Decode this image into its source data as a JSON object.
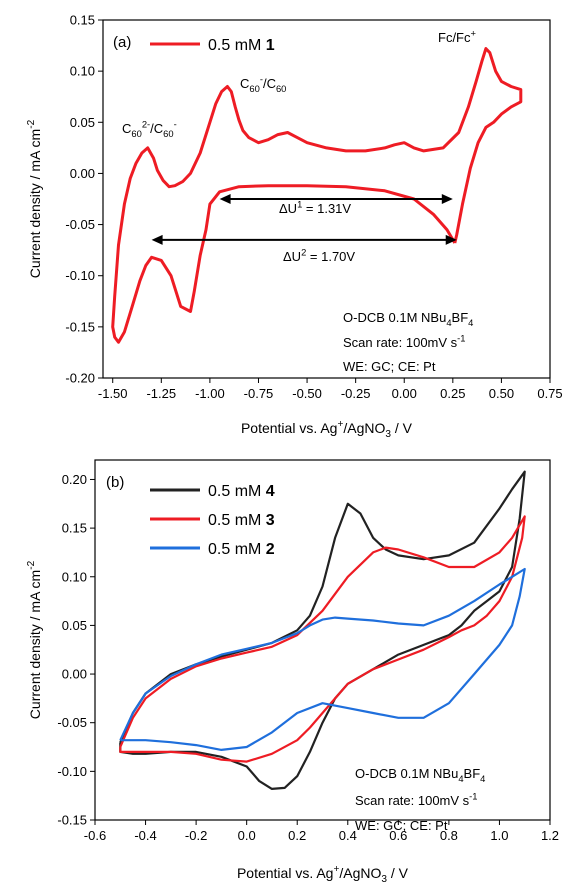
{
  "chart_data": [
    {
      "panel": "(a)",
      "type": "line",
      "xlabel": [
        "Potential vs. Ag",
        "+",
        "/AgNO",
        "3",
        " / V"
      ],
      "ylabel": [
        "Current density / mA cm",
        "-2"
      ],
      "xlim": [
        -1.55,
        0.75
      ],
      "ylim": [
        -0.2,
        0.15
      ],
      "xticks": [
        "-1.50",
        "-1.25",
        "-1.00",
        "-0.75",
        "-0.50",
        "-0.25",
        "0.00",
        "0.25",
        "0.50",
        "0.75"
      ],
      "yticks": [
        "-0.20",
        "-0.15",
        "-0.10",
        "-0.05",
        "0.00",
        "0.05",
        "0.10",
        "0.15"
      ],
      "series": [
        {
          "name": [
            "0.5 mM ",
            "1"
          ],
          "color": "#ee1c24",
          "x": [
            0.26,
            0.22,
            0.15,
            0.05,
            -0.1,
            -0.3,
            -0.5,
            -0.7,
            -0.85,
            -0.95,
            -1.0,
            -1.02,
            -1.05,
            -1.08,
            -1.1,
            -1.15,
            -1.2,
            -1.25,
            -1.3,
            -1.33,
            -1.36,
            -1.4,
            -1.44,
            -1.47,
            -1.49,
            -1.5,
            -1.49,
            -1.47,
            -1.44,
            -1.41,
            -1.38,
            -1.35,
            -1.32,
            -1.29,
            -1.27,
            -1.24,
            -1.21,
            -1.18,
            -1.14,
            -1.1,
            -1.05,
            -1.0,
            -0.97,
            -0.94,
            -0.91,
            -0.89,
            -0.87,
            -0.85,
            -0.83,
            -0.8,
            -0.75,
            -0.7,
            -0.65,
            -0.6,
            -0.55,
            -0.5,
            -0.4,
            -0.3,
            -0.2,
            -0.1,
            -0.05,
            0.0,
            0.05,
            0.1,
            0.2,
            0.28,
            0.33,
            0.37,
            0.4,
            0.42,
            0.44,
            0.47,
            0.5,
            0.55,
            0.6,
            0.6,
            0.55,
            0.5,
            0.46,
            0.42,
            0.38,
            0.34,
            0.3,
            0.27
          ],
          "y": [
            -0.068,
            -0.055,
            -0.04,
            -0.025,
            -0.017,
            -0.013,
            -0.012,
            -0.012,
            -0.013,
            -0.018,
            -0.03,
            -0.055,
            -0.08,
            -0.115,
            -0.135,
            -0.13,
            -0.1,
            -0.085,
            -0.082,
            -0.09,
            -0.105,
            -0.13,
            -0.155,
            -0.165,
            -0.16,
            -0.15,
            -0.12,
            -0.07,
            -0.03,
            -0.005,
            0.01,
            0.02,
            0.025,
            0.015,
            0.003,
            -0.007,
            -0.013,
            -0.012,
            -0.008,
            0.0,
            0.02,
            0.05,
            0.068,
            0.08,
            0.085,
            0.08,
            0.065,
            0.052,
            0.042,
            0.035,
            0.03,
            0.033,
            0.038,
            0.04,
            0.035,
            0.03,
            0.025,
            0.022,
            0.022,
            0.025,
            0.028,
            0.03,
            0.025,
            0.022,
            0.025,
            0.04,
            0.065,
            0.09,
            0.11,
            0.122,
            0.118,
            0.1,
            0.09,
            0.085,
            0.082,
            0.07,
            0.065,
            0.058,
            0.05,
            0.045,
            0.03,
            0.005,
            -0.03,
            -0.06
          ]
        }
      ],
      "annotations": [
        {
          "parts": [
            "C",
            "60",
            "2-",
            "/C",
            "60",
            "-"
          ],
          "kinds": [
            "t",
            "sub",
            "sup",
            "t",
            "sub",
            "sup"
          ]
        },
        {
          "parts": [
            "C",
            "60",
            "-",
            "/C",
            "60"
          ],
          "kinds": [
            "t",
            "sub",
            "sup",
            "t",
            "sub"
          ]
        },
        {
          "parts": [
            "Fc/Fc",
            "+"
          ],
          "kinds": [
            "t",
            "sup"
          ]
        },
        {
          "parts": [
            "ΔU",
            "1",
            " = 1.31V"
          ],
          "kinds": [
            "t",
            "sup",
            "t"
          ]
        },
        {
          "parts": [
            "ΔU",
            "2",
            " = 1.70V"
          ],
          "kinds": [
            "t",
            "sup",
            "t"
          ]
        }
      ],
      "arrows": [
        {
          "x_from": -0.95,
          "x_to": 0.25,
          "y": -0.025
        },
        {
          "x_from": -1.3,
          "x_to": 0.27,
          "y": -0.065
        }
      ],
      "info_lines": [
        {
          "parts": [
            "O-DCB 0.1M NBu",
            "4",
            "BF",
            "4"
          ],
          "kinds": [
            "t",
            "sub",
            "t",
            "sub"
          ]
        },
        {
          "parts": [
            "Scan rate: 100mV s",
            "-1"
          ],
          "kinds": [
            "t",
            "sup"
          ]
        },
        {
          "parts": [
            "WE: GC; CE: Pt"
          ],
          "kinds": [
            "t"
          ]
        }
      ]
    },
    {
      "panel": "(b)",
      "type": "line",
      "xlabel": [
        "Potential vs. Ag",
        "+",
        "/AgNO",
        "3",
        " / V"
      ],
      "ylabel": [
        "Current density / mA cm",
        "-2"
      ],
      "xlim": [
        -0.6,
        1.2
      ],
      "ylim": [
        -0.15,
        0.22
      ],
      "xticks": [
        "-0.6",
        "-0.4",
        "-0.2",
        "0.0",
        "0.2",
        "0.4",
        "0.6",
        "0.8",
        "1.0",
        "1.2"
      ],
      "yticks": [
        "-0.15",
        "-0.10",
        "-0.05",
        "0.00",
        "0.05",
        "0.10",
        "0.15",
        "0.20"
      ],
      "series": [
        {
          "name": [
            "0.5 mM ",
            "4"
          ],
          "color": "#222222",
          "x": [
            -0.5,
            -0.45,
            -0.4,
            -0.3,
            -0.2,
            -0.1,
            0.0,
            0.1,
            0.2,
            0.25,
            0.3,
            0.35,
            0.4,
            0.45,
            0.5,
            0.55,
            0.6,
            0.7,
            0.8,
            0.9,
            1.0,
            1.05,
            1.1,
            1.08,
            1.05,
            1.0,
            0.95,
            0.9,
            0.85,
            0.8,
            0.7,
            0.6,
            0.5,
            0.4,
            0.35,
            0.3,
            0.25,
            0.2,
            0.15,
            0.1,
            0.05,
            0.0,
            -0.1,
            -0.2,
            -0.3,
            -0.4,
            -0.45,
            -0.5
          ],
          "y": [
            -0.07,
            -0.04,
            -0.02,
            0.0,
            0.01,
            0.018,
            0.025,
            0.032,
            0.045,
            0.06,
            0.09,
            0.14,
            0.175,
            0.165,
            0.14,
            0.128,
            0.122,
            0.118,
            0.122,
            0.135,
            0.17,
            0.19,
            0.208,
            0.16,
            0.11,
            0.085,
            0.075,
            0.065,
            0.05,
            0.04,
            0.03,
            0.02,
            0.005,
            -0.01,
            -0.025,
            -0.05,
            -0.08,
            -0.105,
            -0.117,
            -0.118,
            -0.11,
            -0.095,
            -0.085,
            -0.08,
            -0.08,
            -0.082,
            -0.082,
            -0.08
          ]
        },
        {
          "name": [
            "0.5 mM ",
            "3"
          ],
          "color": "#ee1c24",
          "x": [
            -0.5,
            -0.45,
            -0.4,
            -0.3,
            -0.2,
            -0.1,
            0.0,
            0.1,
            0.2,
            0.3,
            0.4,
            0.5,
            0.55,
            0.6,
            0.7,
            0.8,
            0.9,
            1.0,
            1.05,
            1.1,
            1.09,
            1.05,
            1.0,
            0.95,
            0.9,
            0.85,
            0.8,
            0.7,
            0.6,
            0.5,
            0.4,
            0.35,
            0.3,
            0.25,
            0.2,
            0.1,
            0.0,
            -0.1,
            -0.2,
            -0.3,
            -0.4,
            -0.5
          ],
          "y": [
            -0.075,
            -0.045,
            -0.025,
            -0.005,
            0.008,
            0.016,
            0.022,
            0.028,
            0.04,
            0.065,
            0.1,
            0.125,
            0.13,
            0.128,
            0.12,
            0.11,
            0.11,
            0.125,
            0.14,
            0.162,
            0.14,
            0.1,
            0.075,
            0.06,
            0.05,
            0.045,
            0.038,
            0.025,
            0.015,
            0.005,
            -0.01,
            -0.025,
            -0.04,
            -0.055,
            -0.068,
            -0.082,
            -0.09,
            -0.088,
            -0.082,
            -0.08,
            -0.08,
            -0.08
          ]
        },
        {
          "name": [
            "0.5 mM ",
            "2"
          ],
          "color": "#1f6fdc",
          "x": [
            -0.5,
            -0.45,
            -0.4,
            -0.3,
            -0.2,
            -0.1,
            0.0,
            0.1,
            0.2,
            0.25,
            0.3,
            0.35,
            0.4,
            0.5,
            0.6,
            0.7,
            0.8,
            0.9,
            1.0,
            1.05,
            1.1,
            1.08,
            1.05,
            1.0,
            0.95,
            0.9,
            0.8,
            0.7,
            0.6,
            0.5,
            0.4,
            0.3,
            0.2,
            0.1,
            0.0,
            -0.1,
            -0.2,
            -0.3,
            -0.4,
            -0.5
          ],
          "y": [
            -0.068,
            -0.04,
            -0.02,
            -0.002,
            0.01,
            0.02,
            0.026,
            0.032,
            0.042,
            0.05,
            0.056,
            0.058,
            0.057,
            0.055,
            0.052,
            0.05,
            0.06,
            0.075,
            0.092,
            0.1,
            0.108,
            0.08,
            0.05,
            0.03,
            0.015,
            0.0,
            -0.03,
            -0.045,
            -0.045,
            -0.04,
            -0.035,
            -0.03,
            -0.04,
            -0.06,
            -0.075,
            -0.078,
            -0.073,
            -0.07,
            -0.068,
            -0.068
          ]
        }
      ],
      "info_lines": [
        {
          "parts": [
            "O-DCB 0.1M NBu",
            "4",
            "BF",
            "4"
          ],
          "kinds": [
            "t",
            "sub",
            "t",
            "sub"
          ]
        },
        {
          "parts": [
            "Scan rate: 100mV s",
            "-1"
          ],
          "kinds": [
            "t",
            "sup"
          ]
        },
        {
          "parts": [
            "WE: GC; CE: Pt"
          ],
          "kinds": [
            "t"
          ]
        }
      ]
    }
  ]
}
